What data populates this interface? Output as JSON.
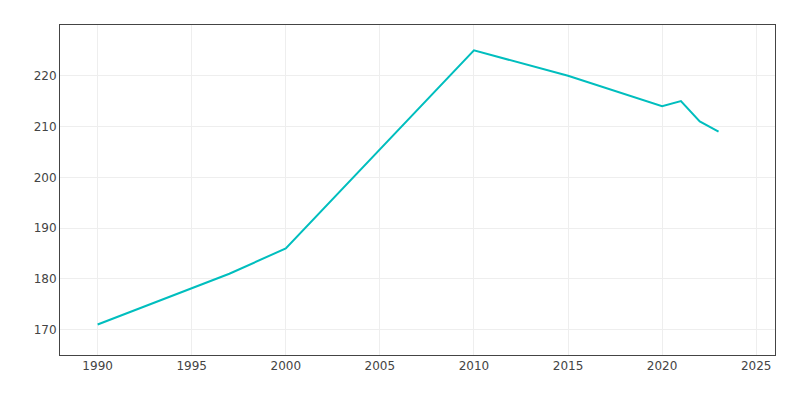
{
  "chart_data": {
    "type": "line",
    "x": [
      1990,
      1997,
      2000,
      2010,
      2015,
      2020,
      2021,
      2022,
      2023
    ],
    "values": [
      171,
      181,
      186,
      225,
      220,
      214,
      215,
      211,
      209
    ],
    "color": "#00BEBE",
    "xlim": [
      1988,
      2026
    ],
    "ylim": [
      165,
      230
    ],
    "xticks": [
      1990,
      1995,
      2000,
      2005,
      2010,
      2015,
      2020,
      2025
    ],
    "yticks": [
      170,
      180,
      190,
      200,
      210,
      220
    ],
    "grid": true
  }
}
